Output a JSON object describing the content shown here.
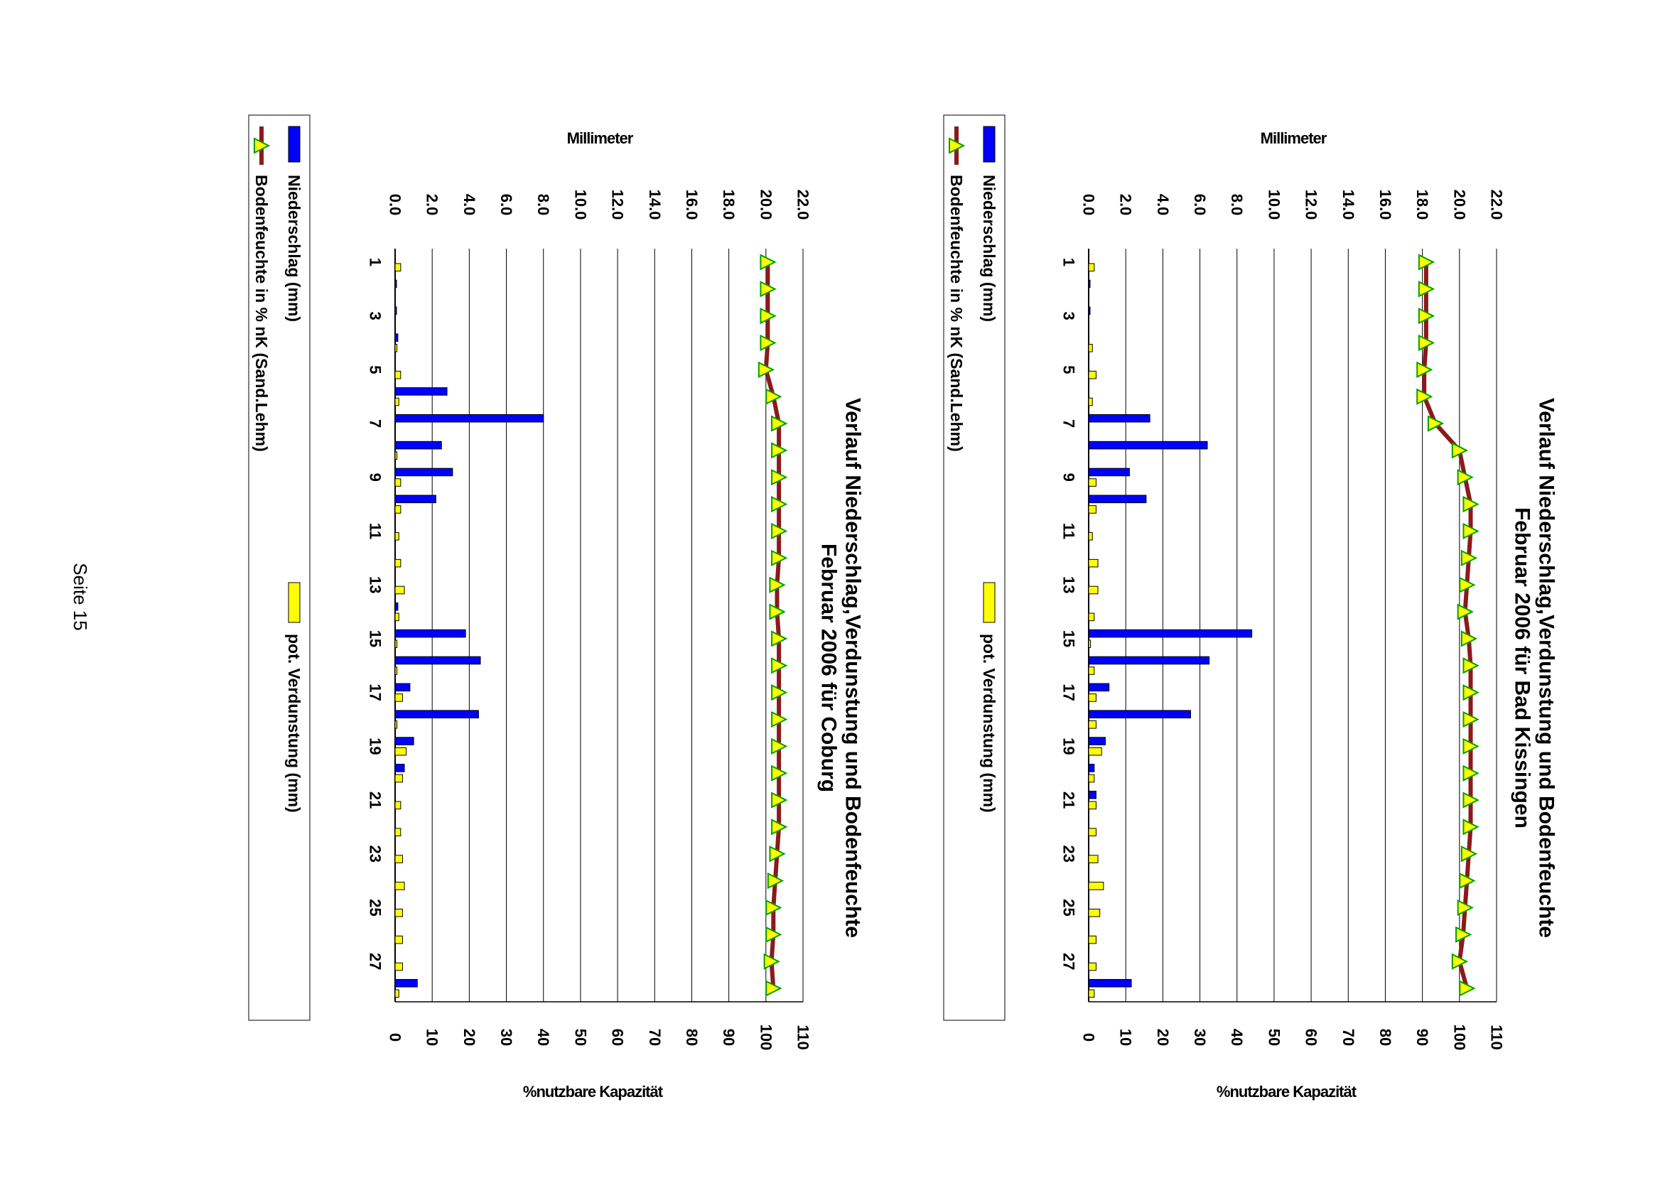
{
  "page": {
    "footer": "Seite 15"
  },
  "colors": {
    "precip": "#0000ff",
    "evap": "#ffff00",
    "soil_line": "#8b1a1a",
    "marker": "#ffff00",
    "marker_border": "#00a000",
    "grid": "#000000"
  },
  "chart_data": [
    {
      "type": "bar+line",
      "title": "Verlauf Niederschlag,Verdunstung und Bodenfeuchte",
      "subtitle": "Februar  2006 für Bad Kissingen",
      "ylabel_left": "Millimeter",
      "ylabel_right": "%nutzbare Kapazität",
      "ylim_left": [
        0,
        22
      ],
      "left_ticks": [
        "0.0",
        "2.0",
        "4.0",
        "6.0",
        "8.0",
        "10.0",
        "12.0",
        "14.0",
        "16.0",
        "18.0",
        "20.0",
        "22.0"
      ],
      "ylim_right": [
        0,
        110
      ],
      "right_ticks": [
        "0",
        "10",
        "20",
        "30",
        "40",
        "50",
        "60",
        "70",
        "80",
        "90",
        "100",
        "110"
      ],
      "x_tick_labels": [
        "1",
        "3",
        "5",
        "7",
        "9",
        "11",
        "13",
        "15",
        "17",
        "19",
        "21",
        "23",
        "25",
        "27"
      ],
      "days": [
        1,
        2,
        3,
        4,
        5,
        6,
        7,
        8,
        9,
        10,
        11,
        12,
        13,
        14,
        15,
        16,
        17,
        18,
        19,
        20,
        21,
        22,
        23,
        24,
        25,
        26,
        27,
        28
      ],
      "grid": true,
      "legend_position": "bottom",
      "series": [
        {
          "name": "Niederschlag (mm)",
          "kind": "bar",
          "axis": "left",
          "values": [
            0,
            0.05,
            0.05,
            0,
            0,
            0,
            3.3,
            6.4,
            2.2,
            3.1,
            0,
            0,
            0,
            0,
            8.8,
            6.5,
            1.1,
            5.5,
            0.9,
            0.3,
            0.4,
            0,
            0,
            0,
            0,
            0,
            0,
            2.3
          ]
        },
        {
          "name": "pot. Verdunstung (mm)",
          "kind": "bar",
          "axis": "left",
          "values": [
            0.3,
            0,
            0,
            0.2,
            0.4,
            0.2,
            0,
            0,
            0.4,
            0.4,
            0.2,
            0.5,
            0.5,
            0.3,
            0.1,
            0.3,
            0.4,
            0.4,
            0.7,
            0.3,
            0.4,
            0.4,
            0.5,
            0.8,
            0.6,
            0.4,
            0.4,
            0.3
          ]
        },
        {
          "name": "Bodenfeuchte in % nK (Sand.Lehm)",
          "kind": "line",
          "axis": "right",
          "values": [
            91,
            91,
            91,
            91,
            90.5,
            90.5,
            93.5,
            100,
            101.5,
            103,
            103,
            102.5,
            102,
            101.5,
            102.5,
            103,
            103,
            103,
            103,
            103,
            103,
            103,
            102.5,
            102,
            101.5,
            101,
            100,
            102
          ]
        }
      ]
    },
    {
      "type": "bar+line",
      "title": "Verlauf Niederschlag,Verdunstung und Bodenfeuchte",
      "subtitle": "Februar 2006 für Coburg",
      "ylabel_left": "Millimeter",
      "ylabel_right": "%nutzbare Kapazität",
      "ylim_left": [
        0,
        22
      ],
      "left_ticks": [
        "0.0",
        "2.0",
        "4.0",
        "6.0",
        "8.0",
        "10.0",
        "12.0",
        "14.0",
        "16.0",
        "18.0",
        "20.0",
        "22.0"
      ],
      "ylim_right": [
        0,
        110
      ],
      "right_ticks": [
        "0",
        "10",
        "20",
        "30",
        "40",
        "50",
        "60",
        "70",
        "80",
        "90",
        "100",
        "110"
      ],
      "x_tick_labels": [
        "1",
        "3",
        "5",
        "7",
        "9",
        "11",
        "13",
        "15",
        "17",
        "19",
        "21",
        "23",
        "25",
        "27"
      ],
      "days": [
        1,
        2,
        3,
        4,
        5,
        6,
        7,
        8,
        9,
        10,
        11,
        12,
        13,
        14,
        15,
        16,
        17,
        18,
        19,
        20,
        21,
        22,
        23,
        24,
        25,
        26,
        27,
        28
      ],
      "grid": true,
      "legend_position": "bottom",
      "series": [
        {
          "name": "Niederschlag (mm)",
          "kind": "bar",
          "axis": "left",
          "values": [
            0,
            0.05,
            0.05,
            0.15,
            0,
            2.8,
            8.0,
            2.5,
            3.1,
            2.2,
            0,
            0,
            0,
            0.15,
            3.8,
            4.6,
            0.8,
            4.5,
            1.0,
            0.5,
            0,
            0,
            0,
            0,
            0,
            0,
            0,
            1.2
          ]
        },
        {
          "name": "pot. Verdunstung (mm)",
          "kind": "bar",
          "axis": "left",
          "values": [
            0.3,
            0,
            0,
            0.1,
            0.3,
            0.2,
            0,
            0.1,
            0.3,
            0.3,
            0.2,
            0.3,
            0.5,
            0.2,
            0.1,
            0.1,
            0.4,
            0.1,
            0.6,
            0.4,
            0.3,
            0.3,
            0.4,
            0.5,
            0.4,
            0.4,
            0.4,
            0.2
          ]
        },
        {
          "name": "Bodenfeuchte in % nK (Sand.Lehm)",
          "kind": "line",
          "axis": "right",
          "values": [
            100.5,
            100.5,
            100.5,
            100.5,
            100,
            102,
            103.5,
            103.5,
            103.5,
            103.5,
            103.5,
            103.5,
            103,
            103,
            103.5,
            103.5,
            103.5,
            103.5,
            103.5,
            103.5,
            103.5,
            103.5,
            103,
            102.5,
            102,
            102,
            101.5,
            102
          ]
        }
      ]
    }
  ]
}
